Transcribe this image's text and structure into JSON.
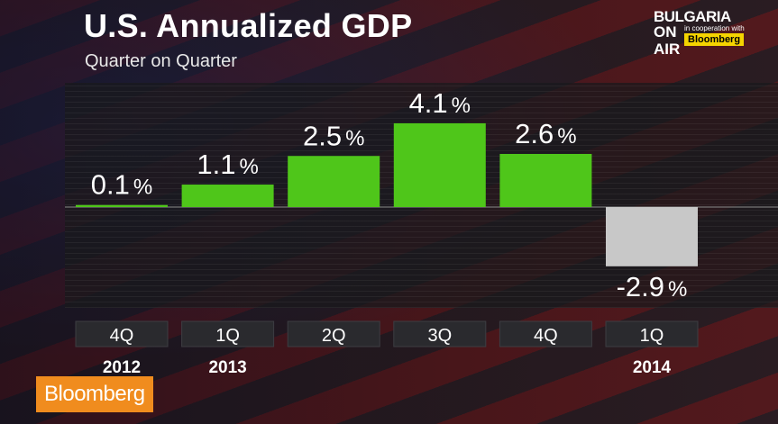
{
  "header": {
    "title": "U.S. Annualized GDP",
    "subtitle": "Quarter on Quarter"
  },
  "logo": {
    "line1": "BULGARIA",
    "line2": "ON",
    "line3": "AIR",
    "cooperation": "in cooperation with",
    "partner": "Bloomberg"
  },
  "bloomberg_tag": "Bloomberg",
  "colors": {
    "positive_bar": "#4fc61a",
    "negative_bar": "#c8c8c8",
    "label_box": "#2a2a2e"
  },
  "chart_data": {
    "type": "bar",
    "title": "U.S. Annualized GDP",
    "subtitle": "Quarter on Quarter",
    "categories": [
      "4Q",
      "1Q",
      "2Q",
      "3Q",
      "4Q",
      "1Q"
    ],
    "years": [
      "2012",
      "2013",
      "",
      "",
      "",
      "2014"
    ],
    "values": [
      0.1,
      1.1,
      2.5,
      4.1,
      2.6,
      -2.9
    ],
    "data_labels": [
      "0.1",
      "1.1",
      "2.5",
      "4.1",
      "2.6",
      "-2.9"
    ],
    "unit": "%",
    "ylim": [
      -3,
      4.5
    ]
  }
}
